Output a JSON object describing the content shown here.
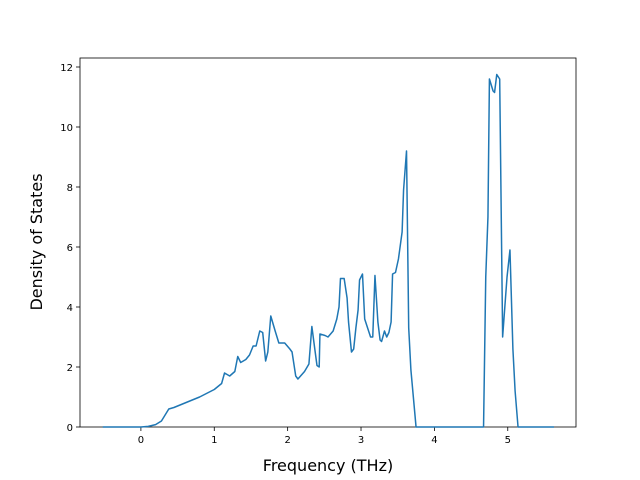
{
  "chart_data": {
    "type": "line",
    "xlabel": "Frequency (THz)",
    "ylabel": "Density of States",
    "xlim": [
      -0.83,
      5.93
    ],
    "ylim": [
      0,
      12.3
    ],
    "xticks": [
      0,
      1,
      2,
      3,
      4,
      5
    ],
    "yticks": [
      0,
      2,
      4,
      6,
      8,
      10,
      12
    ],
    "grid": false,
    "series": [
      {
        "color": "#1f77b4",
        "x": [
          -0.52,
          0,
          0.1,
          0.2,
          0.28,
          0.33,
          0.38,
          0.45,
          0.6,
          0.8,
          1.0,
          1.1,
          1.14,
          1.21,
          1.28,
          1.32,
          1.36,
          1.43,
          1.48,
          1.53,
          1.57,
          1.62,
          1.66,
          1.7,
          1.73,
          1.77,
          1.83,
          1.88,
          1.96,
          2.03,
          2.06,
          2.11,
          2.14,
          2.23,
          2.29,
          2.33,
          2.37,
          2.4,
          2.43,
          2.44,
          2.51,
          2.55,
          2.62,
          2.67,
          2.7,
          2.72,
          2.77,
          2.81,
          2.83,
          2.87,
          2.9,
          2.93,
          2.96,
          2.98,
          3.02,
          3.05,
          3.09,
          3.13,
          3.16,
          3.19,
          3.23,
          3.26,
          3.28,
          3.32,
          3.35,
          3.38,
          3.41,
          3.43,
          3.47,
          3.51,
          3.56,
          3.58,
          3.62,
          3.65,
          3.68,
          3.75,
          4.67,
          4.7,
          4.73,
          4.75,
          4.8,
          4.82,
          4.85,
          4.89,
          4.93,
          4.96,
          4.99,
          5.03,
          5.07,
          5.1,
          5.14,
          5.63
        ],
        "values": [
          0,
          0,
          0.02,
          0.08,
          0.2,
          0.4,
          0.6,
          0.65,
          0.8,
          1.0,
          1.25,
          1.45,
          1.8,
          1.7,
          1.85,
          2.35,
          2.15,
          2.25,
          2.4,
          2.7,
          2.7,
          3.2,
          3.15,
          2.2,
          2.5,
          3.7,
          3.2,
          2.8,
          2.8,
          2.6,
          2.5,
          1.7,
          1.6,
          1.85,
          2.1,
          3.35,
          2.6,
          2.05,
          2.0,
          3.1,
          3.05,
          3.0,
          3.2,
          3.6,
          4.0,
          4.95,
          4.95,
          4.3,
          3.5,
          2.5,
          2.6,
          3.3,
          3.9,
          4.9,
          5.1,
          3.6,
          3.3,
          3.0,
          3.0,
          5.05,
          3.5,
          2.9,
          2.85,
          3.2,
          3.0,
          3.15,
          3.5,
          5.1,
          5.15,
          5.6,
          6.5,
          7.9,
          9.2,
          3.3,
          1.9,
          0,
          0,
          5.0,
          7.0,
          11.6,
          11.2,
          11.15,
          11.75,
          11.6,
          3.0,
          4.0,
          5.0,
          5.9,
          2.6,
          1.2,
          0,
          0
        ]
      }
    ]
  }
}
